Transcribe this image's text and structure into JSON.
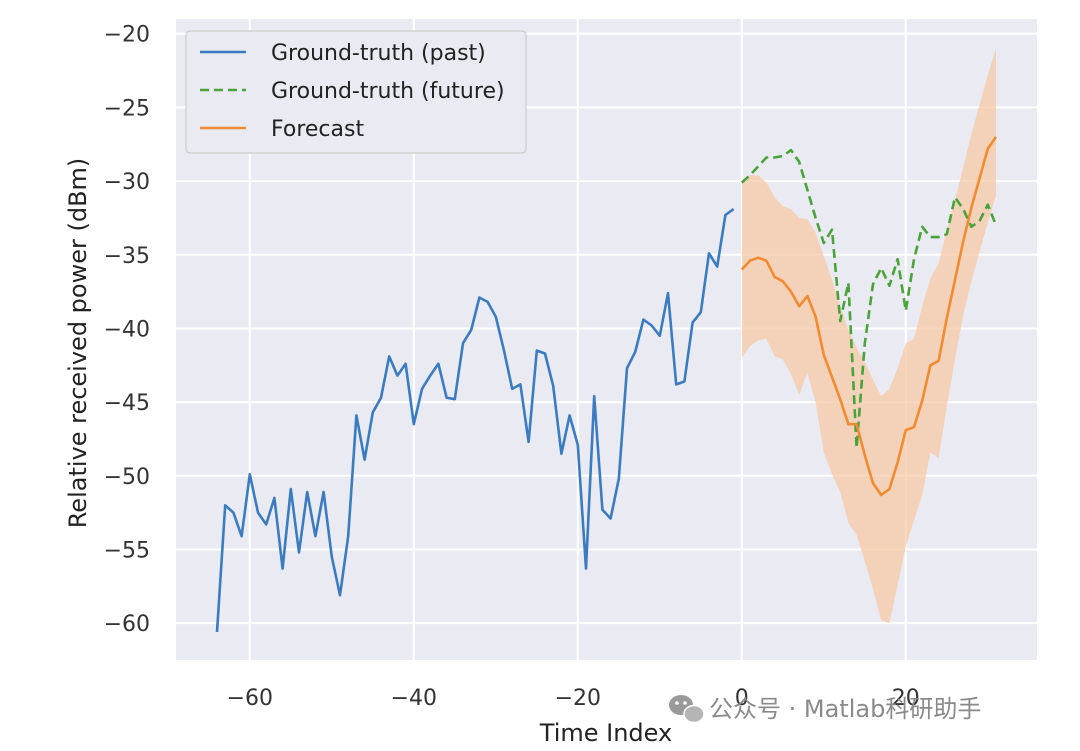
{
  "chart_data": {
    "type": "line",
    "xlabel": "Time Index",
    "ylabel": "Relative received power (dBm)",
    "xlim": [
      -69,
      36
    ],
    "ylim": [
      -62.5,
      -19
    ],
    "xticks": [
      -60,
      -40,
      -20,
      0,
      20
    ],
    "yticks": [
      -20,
      -25,
      -30,
      -35,
      -40,
      -45,
      -50,
      -55,
      -60
    ],
    "xtick_labels": [
      "−60",
      "−40",
      "−20",
      "0",
      "20"
    ],
    "ytick_labels": [
      "−20",
      "−25",
      "−30",
      "−35",
      "−40",
      "−45",
      "−50",
      "−55",
      "−60"
    ],
    "grid": true,
    "legend_position": "top-left",
    "colors": {
      "background": "#eaeaf2",
      "grid": "#ffffff",
      "past": "#3b7bbf",
      "future": "#4aa33a",
      "forecast": "#f28b30",
      "band": "#f6c9a5"
    },
    "series": [
      {
        "name": "Ground-truth (past)",
        "style": "solid",
        "x": [
          -64,
          -63,
          -62,
          -61,
          -60,
          -59,
          -58,
          -57,
          -56,
          -55,
          -54,
          -53,
          -52,
          -51,
          -50,
          -49,
          -48,
          -47,
          -46,
          -45,
          -44,
          -43,
          -42,
          -41,
          -40,
          -39,
          -38,
          -37,
          -36,
          -35,
          -34,
          -33,
          -32,
          -31,
          -30,
          -29,
          -28,
          -27,
          -26,
          -25,
          -24,
          -23,
          -22,
          -21,
          -20,
          -19,
          -18,
          -17,
          -16,
          -15,
          -14,
          -13,
          -12,
          -11,
          -10,
          -9,
          -8,
          -7,
          -6,
          -5,
          -4,
          -3,
          -2,
          -1
        ],
        "y": [
          -60.6,
          -52.0,
          -52.5,
          -54.1,
          -49.9,
          -52.5,
          -53.3,
          -51.5,
          -56.3,
          -50.9,
          -55.2,
          -51.1,
          -54.1,
          -51.1,
          -55.5,
          -58.1,
          -54.1,
          -45.9,
          -48.9,
          -45.7,
          -44.7,
          -41.9,
          -43.2,
          -42.4,
          -46.5,
          -44.1,
          -43.2,
          -42.4,
          -44.7,
          -44.8,
          -41.0,
          -40.1,
          -37.9,
          -38.2,
          -39.2,
          -41.5,
          -44.1,
          -43.8,
          -47.7,
          -41.5,
          -41.7,
          -43.9,
          -48.5,
          -45.9,
          -47.9,
          -56.3,
          -44.6,
          -52.3,
          -52.9,
          -50.2,
          -42.7,
          -41.6,
          -39.4,
          -39.8,
          -40.5,
          -37.6,
          -43.8,
          -43.6,
          -39.6,
          -38.9,
          -34.9,
          -35.8,
          -32.3,
          -31.9
        ]
      },
      {
        "name": "Ground-truth (future)",
        "style": "dashed",
        "x": [
          0,
          1,
          2,
          3,
          4,
          5,
          6,
          7,
          8,
          9,
          10,
          11,
          12,
          13,
          14,
          15,
          16,
          17,
          18,
          19,
          20,
          21,
          22,
          23,
          24,
          25,
          26,
          27,
          28,
          29,
          30,
          31
        ],
        "y": [
          -30.1,
          -29.6,
          -29.0,
          -28.4,
          -28.4,
          -28.3,
          -27.9,
          -28.7,
          -30.6,
          -32.5,
          -34.2,
          -33.3,
          -39.5,
          -36.9,
          -48.1,
          -41.0,
          -37.0,
          -35.9,
          -37.1,
          -35.3,
          -38.8,
          -35.3,
          -33.1,
          -33.8,
          -33.8,
          -33.6,
          -31.1,
          -31.9,
          -33.1,
          -32.7,
          -31.6,
          -33.0
        ]
      },
      {
        "name": "Forecast",
        "style": "solid",
        "x": [
          0,
          1,
          2,
          3,
          4,
          5,
          6,
          7,
          8,
          9,
          10,
          11,
          12,
          13,
          14,
          15,
          16,
          17,
          18,
          19,
          20,
          21,
          22,
          23,
          24,
          25,
          26,
          27,
          28,
          29,
          30,
          31
        ],
        "y": [
          -36.0,
          -35.4,
          -35.2,
          -35.4,
          -36.5,
          -36.8,
          -37.5,
          -38.5,
          -37.8,
          -39.2,
          -41.8,
          -43.3,
          -44.8,
          -46.5,
          -46.5,
          -48.6,
          -50.5,
          -51.3,
          -50.9,
          -49.1,
          -46.9,
          -46.7,
          -44.9,
          -42.5,
          -42.2,
          -39.3,
          -36.7,
          -34.1,
          -31.8,
          -29.8,
          -27.8,
          -27.0
        ],
        "band_upper": [
          -30.0,
          -29.6,
          -29.6,
          -30.1,
          -31.1,
          -31.7,
          -31.9,
          -32.5,
          -32.6,
          -33.5,
          -35.1,
          -36.7,
          -38.5,
          -40.1,
          -41.3,
          -42.3,
          -43.5,
          -44.6,
          -44.1,
          -42.7,
          -41.0,
          -40.7,
          -38.5,
          -36.6,
          -35.6,
          -33.3,
          -31.3,
          -29.1,
          -26.8,
          -24.8,
          -22.8,
          -21.0
        ],
        "band_lower": [
          -42.0,
          -41.2,
          -40.8,
          -40.7,
          -41.9,
          -42.1,
          -43.1,
          -44.5,
          -43.0,
          -45.0,
          -48.4,
          -49.9,
          -51.1,
          -53.2,
          -54.0,
          -55.8,
          -57.7,
          -59.8,
          -60.0,
          -57.4,
          -54.8,
          -53.0,
          -51.3,
          -48.4,
          -48.8,
          -45.3,
          -42.1,
          -39.1,
          -36.8,
          -34.8,
          -32.8,
          -31.0
        ]
      }
    ]
  },
  "watermark": {
    "text": "公众号 · Matlab科研助手",
    "icon": "wechat-icon"
  }
}
